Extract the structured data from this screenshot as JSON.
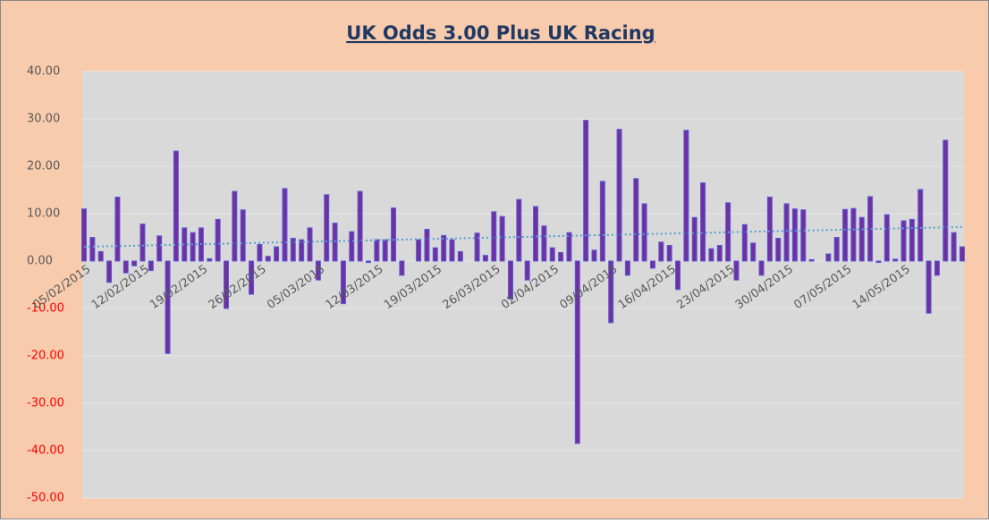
{
  "chart_data": {
    "type": "bar",
    "title": "UK Odds 3.00 Plus UK Racing",
    "categories": [
      "05/02/2015",
      null,
      null,
      null,
      null,
      null,
      null,
      "12/02/2015",
      null,
      null,
      null,
      null,
      null,
      null,
      "19/02/2015",
      null,
      null,
      null,
      null,
      null,
      null,
      "26/02/2015",
      null,
      null,
      null,
      null,
      null,
      null,
      "05/03/2015",
      null,
      null,
      null,
      null,
      null,
      null,
      "12/03/2015",
      null,
      null,
      null,
      null,
      null,
      null,
      "19/03/2015",
      null,
      null,
      null,
      null,
      null,
      null,
      "26/03/2015",
      null,
      null,
      null,
      null,
      null,
      null,
      "02/04/2015",
      null,
      null,
      null,
      null,
      null,
      null,
      "09/04/2015",
      null,
      null,
      null,
      null,
      null,
      null,
      "16/04/2015",
      null,
      null,
      null,
      null,
      null,
      null,
      "23/04/2015",
      null,
      null,
      null,
      null,
      null,
      null,
      "30/04/2015",
      null,
      null,
      null,
      null,
      null,
      null,
      "07/05/2015",
      null,
      null,
      null,
      null,
      null,
      null,
      "14/05/2015",
      null,
      null,
      null,
      null,
      null,
      null,
      null
    ],
    "values": [
      11,
      5,
      2,
      -4.5,
      13.5,
      -2.5,
      -1,
      7.8,
      -2,
      5.3,
      -19.5,
      23.2,
      7,
      6,
      7,
      0.5,
      8.8,
      -10,
      14.7,
      10.8,
      -7,
      3.5,
      1,
      3,
      15.3,
      4.8,
      4.5,
      7,
      -4,
      14,
      8,
      -9,
      6.2,
      14.7,
      -0.3,
      4.5,
      4.5,
      11.2,
      -3,
      0,
      4.5,
      6.7,
      2.8,
      5.4,
      4.5,
      2,
      0,
      5.9,
      1.2,
      10.4,
      9.4,
      -8,
      13,
      -4,
      11.5,
      7.4,
      2.8,
      1.8,
      6,
      -38.5,
      29.7,
      2.3,
      16.8,
      -13,
      27.8,
      -3,
      17.4,
      12.1,
      -1.5,
      4,
      3.3,
      -6,
      27.6,
      9.2,
      16.5,
      2.6,
      3.3,
      12.3,
      -4,
      7.7,
      3.8,
      -3,
      13.5,
      4.8,
      12.1,
      11,
      10.8,
      0.3,
      0,
      1.5,
      5,
      10.9,
      11.1,
      9.2,
      13.6,
      -0.3,
      9.8,
      0.4,
      8.5,
      8.8,
      15.1,
      -11,
      -3,
      25.5,
      6,
      3
    ],
    "color": "#7030a0",
    "edge_color": "#5b5bd6",
    "trend": {
      "start": 3,
      "end": 7.2,
      "color": "#5b9bd5"
    },
    "ylim": [
      -50,
      40
    ],
    "yticks": [
      {
        "value": -50,
        "label": "-50.00"
      },
      {
        "value": -40,
        "label": "-40.00"
      },
      {
        "value": -30,
        "label": "-30.00"
      },
      {
        "value": -20,
        "label": "-20.00"
      },
      {
        "value": -10,
        "label": "-10.00"
      },
      {
        "value": 0,
        "label": "0.00"
      },
      {
        "value": 10,
        "label": "10.00"
      },
      {
        "value": 20,
        "label": "20.00"
      },
      {
        "value": 30,
        "label": "30.00"
      },
      {
        "value": 40,
        "label": "40.00"
      }
    ],
    "negative_tick_color": "#ff0000",
    "grid": true
  }
}
